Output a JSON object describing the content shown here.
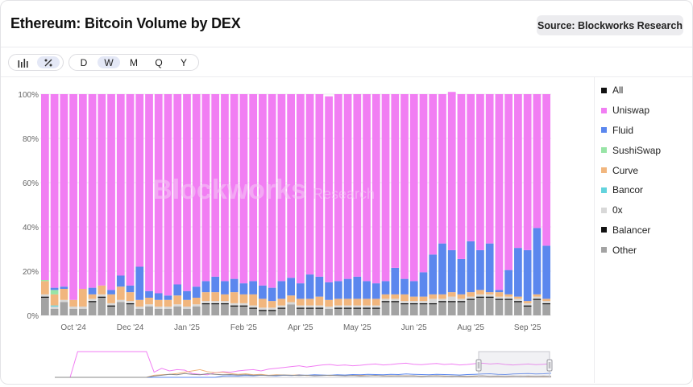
{
  "header": {
    "title": "Ethereum: Bitcoin Volume by DEX",
    "source_label": "Source: Blockworks Research"
  },
  "toolbar": {
    "chart_modes": [
      {
        "name": "bar-chart-icon",
        "active": false
      },
      {
        "name": "percent-icon",
        "active": true
      }
    ],
    "intervals": [
      {
        "label": "D",
        "active": false
      },
      {
        "label": "W",
        "active": true
      },
      {
        "label": "M",
        "active": false
      },
      {
        "label": "Q",
        "active": false
      },
      {
        "label": "Y",
        "active": false
      }
    ]
  },
  "watermark": {
    "brand": "Blockworks",
    "suffix": "Research"
  },
  "legend": [
    {
      "label": "All",
      "color": "#111111"
    },
    {
      "label": "Uniswap",
      "color": "#f17ef3"
    },
    {
      "label": "Fluid",
      "color": "#5b87ee"
    },
    {
      "label": "SushiSwap",
      "color": "#98e4a6"
    },
    {
      "label": "Curve",
      "color": "#f1b67e"
    },
    {
      "label": "Bancor",
      "color": "#63d3dd"
    },
    {
      "label": "0x",
      "color": "#d8d8d8"
    },
    {
      "label": "Balancer",
      "color": "#111111"
    },
    {
      "label": "Other",
      "color": "#a3a3a3"
    }
  ],
  "chart_data": {
    "type": "bar",
    "stacked": true,
    "normalized": true,
    "y_ticks": [
      "0%",
      "20%",
      "40%",
      "60%",
      "80%",
      "100%"
    ],
    "ylim": [
      0,
      100
    ],
    "x_tick_labels": [
      {
        "label": "Oct '24",
        "index": 3
      },
      {
        "label": "Dec '24",
        "index": 9
      },
      {
        "label": "Jan '25",
        "index": 15
      },
      {
        "label": "Feb '25",
        "index": 21
      },
      {
        "label": "Apr '25",
        "index": 27
      },
      {
        "label": "May '25",
        "index": 33
      },
      {
        "label": "Jun '25",
        "index": 39
      },
      {
        "label": "Aug '25",
        "index": 45
      },
      {
        "label": "Sep '25",
        "index": 51
      }
    ],
    "series_order": [
      "Other",
      "Balancer",
      "0x",
      "Bancor",
      "Curve",
      "SushiSwap",
      "Fluid",
      "Uniswap"
    ],
    "series": [
      {
        "name": "Other",
        "color": "#a3a3a3",
        "values": [
          8,
          3,
          6,
          3,
          3,
          6,
          8,
          4,
          6,
          5,
          3,
          4,
          3,
          3,
          4,
          3,
          4,
          5,
          5,
          5,
          4,
          4,
          3,
          2,
          2,
          3,
          5,
          3,
          3,
          3,
          3,
          3,
          3,
          3,
          3,
          3,
          6,
          6,
          5,
          5,
          5,
          5,
          6,
          6,
          6,
          7,
          8,
          8,
          7,
          7,
          6,
          4,
          7,
          5
        ]
      },
      {
        "name": "Balancer",
        "color": "#111111",
        "values": [
          0.5,
          0,
          0,
          0,
          0,
          0.5,
          0.5,
          0.5,
          0,
          0.5,
          0,
          0,
          0,
          0,
          0,
          0,
          0,
          0.5,
          0.5,
          0.5,
          0.5,
          0.5,
          0.5,
          0.5,
          0.5,
          0.5,
          0,
          0.5,
          0.5,
          0.5,
          0,
          0.5,
          0.5,
          0.5,
          0.5,
          0.5,
          0.5,
          0.5,
          0.5,
          0.5,
          0.5,
          0.5,
          0.5,
          0.5,
          0.5,
          0.5,
          0.5,
          0.5,
          0.5,
          0.5,
          0.5,
          0.5,
          0.5,
          0.5
        ]
      },
      {
        "name": "0x",
        "color": "#d8d8d8",
        "values": [
          1,
          1,
          1,
          1,
          1,
          1,
          1,
          1,
          1,
          1,
          1,
          1,
          1,
          1,
          1,
          1,
          1,
          1,
          1,
          1,
          1,
          1,
          1,
          1,
          1,
          1,
          1,
          1,
          1,
          1,
          1,
          1,
          1,
          1,
          1,
          1,
          1,
          1,
          1,
          1,
          1,
          2,
          1,
          2,
          1,
          1,
          1,
          1,
          1,
          1,
          1,
          1,
          1,
          1
        ]
      },
      {
        "name": "Bancor",
        "color": "#63d3dd",
        "values": [
          0,
          0.5,
          0,
          0,
          0,
          0,
          0,
          0,
          0,
          0,
          0,
          0,
          0,
          0,
          0,
          0,
          0,
          0,
          0,
          0,
          0,
          0,
          0,
          0,
          0,
          0,
          0,
          0,
          0,
          0,
          0,
          0,
          0,
          0,
          0,
          0,
          0,
          0,
          0,
          0,
          0,
          0,
          0,
          0,
          0,
          0,
          0,
          0,
          0,
          0,
          0,
          0,
          0,
          0
        ]
      },
      {
        "name": "Curve",
        "color": "#f1b67e",
        "values": [
          6,
          5,
          5,
          3,
          8,
          2,
          4,
          4,
          6,
          4,
          3,
          3,
          3,
          3,
          4,
          3,
          3,
          4,
          4,
          3,
          5,
          4,
          5,
          4,
          3,
          3,
          3,
          3,
          3,
          4,
          3,
          3,
          3,
          3,
          3,
          3,
          2,
          2,
          3,
          2,
          2,
          2,
          2,
          2,
          2,
          2,
          2,
          1,
          2,
          1,
          1,
          1,
          1,
          1
        ]
      },
      {
        "name": "SushiSwap",
        "color": "#98e4a6",
        "values": [
          0.5,
          2,
          0,
          0,
          0,
          0,
          0,
          0,
          0,
          0,
          0,
          0,
          0,
          0,
          0,
          0,
          0,
          0,
          0,
          0,
          0,
          0,
          0,
          0,
          0,
          0,
          0,
          0,
          0,
          0,
          0,
          0,
          0,
          0,
          0,
          0,
          0,
          0,
          0,
          0,
          0,
          0,
          0,
          0,
          0,
          0,
          0,
          0,
          0,
          0,
          0,
          0,
          0,
          0
        ]
      },
      {
        "name": "Fluid",
        "color": "#5b87ee",
        "values": [
          0,
          1,
          1,
          0,
          0,
          3,
          0,
          2,
          5,
          3,
          15,
          3,
          3,
          2,
          5,
          4,
          5,
          5,
          7,
          6,
          6,
          5,
          6,
          6,
          6,
          8,
          8,
          7,
          11,
          9,
          8,
          8,
          9,
          10,
          8,
          7,
          6,
          12,
          7,
          7,
          11,
          18,
          23,
          19,
          16,
          23,
          18,
          22,
          1,
          11,
          22,
          23,
          30,
          24
        ]
      },
      {
        "name": "Uniswap",
        "color": "#f17ef3",
        "values": [
          84,
          87.5,
          87,
          93,
          88,
          87.5,
          86.5,
          88.5,
          82,
          86.5,
          78,
          89,
          90,
          91,
          86,
          89,
          87,
          84.5,
          82.5,
          84.5,
          83.5,
          85.5,
          84.5,
          86.5,
          87.5,
          84.5,
          83,
          85.5,
          81.5,
          82.5,
          84,
          84.5,
          83.5,
          82.5,
          84.5,
          85.5,
          84.5,
          78.5,
          83.5,
          84.5,
          80.5,
          72.5,
          67.5,
          71.5,
          74.5,
          66.5,
          70.5,
          67.5,
          88.5,
          79.5,
          69.5,
          70.5,
          60.5,
          68.5
        ]
      }
    ],
    "navigator": {
      "note": "overview of full history",
      "uniswap": [
        0,
        0,
        0,
        100,
        100,
        100,
        100,
        100,
        100,
        100,
        100,
        100,
        100,
        20,
        35,
        25,
        30,
        28,
        15,
        12,
        10,
        18,
        22,
        20,
        25,
        28,
        30,
        25,
        32,
        35,
        38,
        42,
        45,
        40,
        44,
        48,
        50,
        46,
        48,
        45,
        47,
        50,
        52,
        48,
        50,
        53,
        55,
        51,
        49,
        52,
        54,
        50,
        52,
        48,
        50,
        53,
        55,
        52,
        54,
        50,
        48,
        50,
        52,
        49,
        51,
        53
      ],
      "curve": [
        0,
        0,
        0,
        0,
        0,
        0,
        0,
        0,
        0,
        0,
        0,
        0,
        0,
        8,
        10,
        12,
        15,
        20,
        25,
        30,
        22,
        18,
        20,
        15,
        12,
        14,
        10,
        12,
        8,
        10,
        9,
        8,
        10,
        7,
        8,
        9,
        7,
        8,
        6,
        7,
        8,
        6,
        7,
        5,
        6,
        5,
        6,
        5,
        4,
        5,
        6,
        4,
        5,
        4,
        3,
        4,
        5,
        3,
        4,
        3,
        4,
        5,
        3,
        4,
        3,
        4
      ],
      "fluid": [
        0,
        0,
        0,
        0,
        0,
        0,
        0,
        0,
        0,
        0,
        0,
        0,
        0,
        0,
        0,
        0,
        0,
        0,
        0,
        0,
        0,
        0,
        5,
        6,
        5,
        7,
        6,
        8,
        7,
        6,
        8,
        7,
        9,
        8,
        10,
        9,
        8,
        10,
        9,
        11,
        10,
        12,
        11,
        10,
        12,
        11,
        13,
        12,
        11,
        10,
        12,
        11,
        10,
        9,
        11,
        12,
        13,
        14,
        12,
        11,
        13,
        14,
        15,
        13,
        14,
        16
      ],
      "other": [
        0,
        0,
        0,
        0,
        0,
        0,
        0,
        0,
        0,
        0,
        0,
        0,
        0,
        5,
        8,
        12,
        10,
        15,
        12,
        10,
        14,
        12,
        10,
        11,
        9,
        10,
        8,
        9,
        7,
        8,
        9,
        8,
        7,
        8,
        6,
        7,
        8,
        7,
        6,
        7,
        5,
        6,
        7,
        6,
        5,
        6,
        5,
        6,
        4,
        5,
        6,
        5,
        4,
        5,
        4,
        5,
        6,
        4,
        5,
        4,
        5,
        4,
        5,
        4,
        5,
        4
      ]
    }
  }
}
